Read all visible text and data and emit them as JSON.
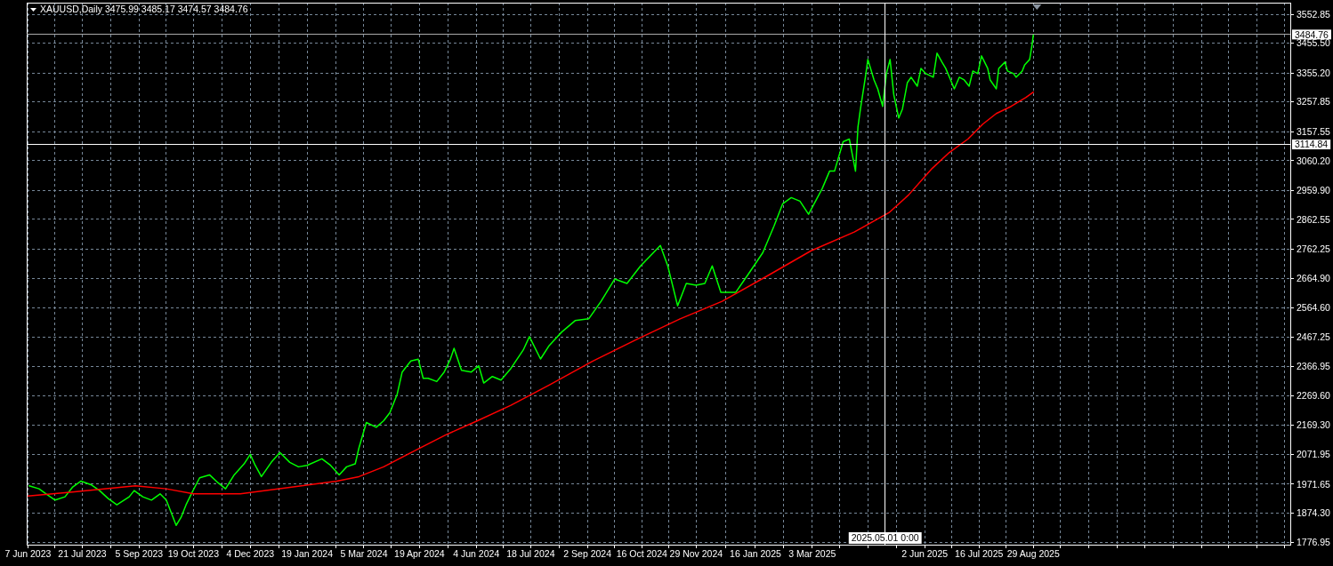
{
  "chart_data": {
    "type": "line",
    "title": "XAUUSD,Daily 3475.99 3485.17 3474.57 3484.76",
    "xlim": [
      "2023-06-06",
      "2026-03-25"
    ],
    "ylim": [
      1768,
      3592
    ],
    "xticks": [
      {
        "value": "2023-06-07",
        "label": "7 Jun 2023"
      },
      {
        "value": "2023-06-29",
        "label": null
      },
      {
        "value": "2023-07-21",
        "label": "21 Jul 2023"
      },
      {
        "value": "2023-08-13",
        "label": null
      },
      {
        "value": "2023-09-05",
        "label": "5 Sep 2023"
      },
      {
        "value": "2023-09-27",
        "label": null
      },
      {
        "value": "2023-10-19",
        "label": "19 Oct 2023"
      },
      {
        "value": "2023-11-11",
        "label": null
      },
      {
        "value": "2023-12-04",
        "label": "4 Dec 2023"
      },
      {
        "value": "2023-12-27",
        "label": null
      },
      {
        "value": "2024-01-19",
        "label": "19 Jan 2024"
      },
      {
        "value": "2024-02-11",
        "label": null
      },
      {
        "value": "2024-03-05",
        "label": "5 Mar 2024"
      },
      {
        "value": "2024-03-27",
        "label": null
      },
      {
        "value": "2024-04-19",
        "label": "19 Apr 2024"
      },
      {
        "value": "2024-05-12",
        "label": null
      },
      {
        "value": "2024-06-04",
        "label": "4 Jun 2024"
      },
      {
        "value": "2024-06-26",
        "label": null
      },
      {
        "value": "2024-07-18",
        "label": "18 Jul 2024"
      },
      {
        "value": "2024-08-10",
        "label": null
      },
      {
        "value": "2024-09-02",
        "label": "2 Sep 2024"
      },
      {
        "value": "2024-09-24",
        "label": null
      },
      {
        "value": "2024-10-16",
        "label": "16 Oct 2024"
      },
      {
        "value": "2024-11-07",
        "label": null
      },
      {
        "value": "2024-11-29",
        "label": "29 Nov 2024"
      },
      {
        "value": "2024-12-23",
        "label": null
      },
      {
        "value": "2025-01-16",
        "label": "16 Jan 2025"
      },
      {
        "value": "2025-02-08",
        "label": null
      },
      {
        "value": "2025-03-03",
        "label": "3 Mar 2025"
      },
      {
        "value": "2025-03-25",
        "label": null
      },
      {
        "value": "2025-04-17",
        "label": null
      },
      {
        "value": "2025-05-10",
        "label": null
      },
      {
        "value": "2025-06-02",
        "label": "2 Jun 2025"
      },
      {
        "value": "2025-06-24",
        "label": null
      },
      {
        "value": "2025-07-16",
        "label": "16 Jul 2025"
      },
      {
        "value": "2025-08-07",
        "label": null
      },
      {
        "value": "2025-08-29",
        "label": "29 Aug 2025"
      },
      {
        "value": "2025-09-20",
        "label": null
      },
      {
        "value": "2025-10-13",
        "label": null
      },
      {
        "value": "2025-11-05",
        "label": null
      },
      {
        "value": "2025-11-27",
        "label": null
      },
      {
        "value": "2025-12-20",
        "label": null
      },
      {
        "value": "2026-01-12",
        "label": null
      },
      {
        "value": "2026-02-03",
        "label": null
      },
      {
        "value": "2026-02-26",
        "label": null
      },
      {
        "value": "2026-03-20",
        "label": null
      }
    ],
    "yticks": [
      3552.85,
      {
        "value": 3455.5,
        "label": "3455.50"
      },
      {
        "value": 3355.2,
        "label": "3355.20"
      },
      3257.85,
      3157.55,
      {
        "value": 3060.2,
        "label": "3060.20"
      },
      {
        "value": 2959.9,
        "label": "2959.90"
      },
      2862.55,
      2762.25,
      {
        "value": 2664.9,
        "label": "2664.90"
      },
      {
        "value": 2564.6,
        "label": "2564.60"
      },
      2467.25,
      2366.95,
      {
        "value": 2269.6,
        "label": "2269.60"
      },
      {
        "value": 2169.3,
        "label": "2169.30"
      },
      2071.95,
      1971.65,
      {
        "value": 1874.3,
        "label": "1874.30"
      },
      1776.95
    ],
    "grid": true,
    "series": [
      {
        "color": "#00ff00",
        "x": [
          "2023-06-08",
          "2023-06-16",
          "2023-06-23",
          "2023-06-29",
          "2023-07-07",
          "2023-07-13",
          "2023-07-20",
          "2023-07-28",
          "2023-08-04",
          "2023-08-11",
          "2023-08-18",
          "2023-08-28",
          "2023-09-01",
          "2023-09-08",
          "2023-09-15",
          "2023-09-22",
          "2023-09-27",
          "2023-10-02",
          "2023-10-05",
          "2023-10-09",
          "2023-10-13",
          "2023-10-18",
          "2023-10-24",
          "2023-11-01",
          "2023-11-08",
          "2023-11-14",
          "2023-11-21",
          "2023-11-29",
          "2023-12-04",
          "2023-12-08",
          "2023-12-13",
          "2023-12-21",
          "2023-12-28",
          "2024-01-05",
          "2024-01-12",
          "2024-01-19",
          "2024-01-31",
          "2024-02-07",
          "2024-02-14",
          "2024-02-20",
          "2024-02-27",
          "2024-03-01",
          "2024-03-07",
          "2024-03-15",
          "2024-03-21",
          "2024-03-26",
          "2024-04-01",
          "2024-04-05",
          "2024-04-12",
          "2024-04-18",
          "2024-04-22",
          "2024-04-26",
          "2024-05-03",
          "2024-05-09",
          "2024-05-14",
          "2024-05-17",
          "2024-05-23",
          "2024-05-31",
          "2024-06-06",
          "2024-06-10",
          "2024-06-17",
          "2024-06-24",
          "2024-07-02",
          "2024-07-12",
          "2024-07-17",
          "2024-07-26",
          "2024-08-02",
          "2024-08-12",
          "2024-08-23",
          "2024-09-03",
          "2024-09-13",
          "2024-09-24",
          "2024-10-04",
          "2024-10-15",
          "2024-10-22",
          "2024-10-31",
          "2024-11-06",
          "2024-11-14",
          "2024-11-21",
          "2024-11-29",
          "2024-12-06",
          "2024-12-12",
          "2024-12-19",
          "2024-12-31",
          "2025-01-10",
          "2025-01-22",
          "2025-01-31",
          "2025-02-07",
          "2025-02-14",
          "2025-02-21",
          "2025-02-28",
          "2025-03-11",
          "2025-03-17",
          "2025-03-21",
          "2025-03-28",
          "2025-04-02",
          "2025-04-07",
          "2025-04-09",
          "2025-04-11",
          "2025-04-15",
          "2025-04-17",
          "2025-04-22",
          "2025-04-25",
          "2025-04-29",
          "2025-05-02",
          "2025-05-05",
          "2025-05-08",
          "2025-05-12",
          "2025-05-15",
          "2025-05-19",
          "2025-05-22",
          "2025-05-27",
          "2025-05-30",
          "2025-06-03",
          "2025-06-09",
          "2025-06-12",
          "2025-06-16",
          "2025-06-19",
          "2025-06-23",
          "2025-06-26",
          "2025-06-30",
          "2025-07-04",
          "2025-07-08",
          "2025-07-11",
          "2025-07-15",
          "2025-07-18",
          "2025-07-23",
          "2025-07-25",
          "2025-07-30",
          "2025-08-01",
          "2025-08-06",
          "2025-08-08",
          "2025-08-13",
          "2025-08-15",
          "2025-08-20",
          "2025-08-22",
          "2025-08-26",
          "2025-08-28",
          "2025-08-29"
        ],
        "values": [
          1966,
          1956,
          1935,
          1918,
          1929,
          1961,
          1982,
          1970,
          1950,
          1923,
          1902,
          1929,
          1950,
          1929,
          1918,
          1939,
          1918,
          1865,
          1833,
          1860,
          1902,
          1945,
          1993,
          2003,
          1976,
          1956,
          2003,
          2040,
          2072,
          2035,
          1997,
          2045,
          2078,
          2045,
          2030,
          2035,
          2057,
          2035,
          2003,
          2030,
          2040,
          2094,
          2179,
          2163,
          2185,
          2212,
          2275,
          2349,
          2386,
          2392,
          2328,
          2328,
          2317,
          2349,
          2392,
          2429,
          2355,
          2349,
          2370,
          2312,
          2334,
          2322,
          2361,
          2423,
          2468,
          2393,
          2438,
          2483,
          2522,
          2528,
          2587,
          2662,
          2647,
          2706,
          2736,
          2775,
          2706,
          2572,
          2647,
          2641,
          2647,
          2706,
          2617,
          2617,
          2677,
          2751,
          2840,
          2915,
          2936,
          2924,
          2880,
          2966,
          3025,
          3025,
          3124,
          3133,
          3025,
          3174,
          3234,
          3341,
          3401,
          3332,
          3302,
          3243,
          3353,
          3401,
          3282,
          3204,
          3234,
          3323,
          3341,
          3311,
          3371,
          3353,
          3341,
          3422,
          3392,
          3371,
          3332,
          3302,
          3341,
          3332,
          3311,
          3362,
          3353,
          3413,
          3371,
          3332,
          3302,
          3371,
          3392,
          3362,
          3353,
          3341,
          3362,
          3383,
          3401,
          3452,
          3485
        ]
      },
      {
        "color": "#ff0000",
        "x": [
          "2023-06-07",
          "2023-07-13",
          "2023-09-02",
          "2023-09-27",
          "2023-10-19",
          "2023-11-26",
          "2024-01-05",
          "2024-02-12",
          "2024-03-01",
          "2024-03-21",
          "2024-04-15",
          "2024-05-10",
          "2024-06-05",
          "2024-07-02",
          "2024-08-02",
          "2024-09-06",
          "2024-10-12",
          "2024-11-16",
          "2024-12-20",
          "2025-01-25",
          "2025-03-02",
          "2025-04-06",
          "2025-04-24",
          "2025-05-04",
          "2025-05-20",
          "2025-06-08",
          "2025-06-22",
          "2025-07-07",
          "2025-07-19",
          "2025-07-30",
          "2025-08-11",
          "2025-08-23",
          "2025-08-29"
        ],
        "values": [
          1932,
          1945,
          1966,
          1956,
          1939,
          1939,
          1961,
          1982,
          1997,
          2030,
          2084,
          2137,
          2185,
          2237,
          2305,
          2385,
          2459,
          2528,
          2587,
          2671,
          2757,
          2820,
          2862,
          2885,
          2945,
          3034,
          3088,
          3133,
          3183,
          3219,
          3243,
          3273,
          3291
        ]
      }
    ],
    "ref_lines": [
      {
        "axis": "y",
        "value": 3484.76,
        "label": "3484.76",
        "color": "#a9a9a9"
      },
      {
        "axis": "y",
        "value": 3114.84,
        "label": "3114.84",
        "color": "#ffffff"
      },
      {
        "axis": "x",
        "value": "2025-05-01",
        "label": "2025.05.01 0:00",
        "color": "#ffffff"
      }
    ]
  }
}
